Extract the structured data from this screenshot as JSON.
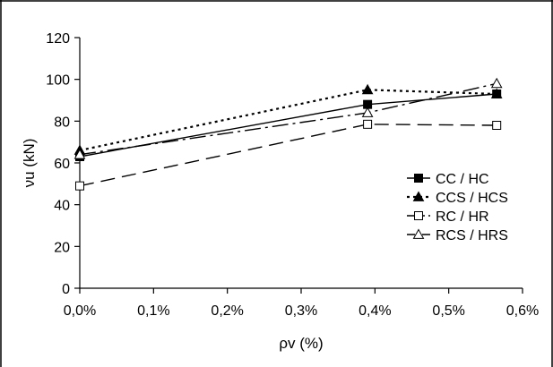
{
  "chart_data": {
    "type": "line",
    "xlabel": "ρv (%)",
    "ylabel": "νu (kN)",
    "xlim": [
      0.0,
      0.6
    ],
    "ylim": [
      0,
      120
    ],
    "x_ticks": [
      "0,0%",
      "0,1%",
      "0,2%",
      "0,3%",
      "0,4%",
      "0,5%",
      "0,6%"
    ],
    "y_ticks": [
      "0",
      "20",
      "40",
      "60",
      "80",
      "100",
      "120"
    ],
    "grid": false,
    "legend_position": "right",
    "series": [
      {
        "name": "CC / HC",
        "x": [
          0.0,
          0.39,
          0.565
        ],
        "values": [
          63,
          88,
          93
        ],
        "line_style": "solid",
        "marker": "filled-square",
        "color": "#000000"
      },
      {
        "name": "CCS / HCS",
        "x": [
          0.0,
          0.39,
          0.565
        ],
        "values": [
          66,
          95,
          93
        ],
        "line_style": "dotted",
        "marker": "filled-triangle",
        "color": "#000000"
      },
      {
        "name": "RC / HR",
        "x": [
          0.0,
          0.39,
          0.565
        ],
        "values": [
          49,
          78.5,
          78
        ],
        "line_style": "long-dash",
        "marker": "open-square",
        "color": "#000000"
      },
      {
        "name": "RCS / HRS",
        "x": [
          0.0,
          0.39,
          0.565
        ],
        "values": [
          64,
          84,
          98
        ],
        "line_style": "dash-dot",
        "marker": "open-triangle",
        "color": "#000000"
      }
    ]
  }
}
